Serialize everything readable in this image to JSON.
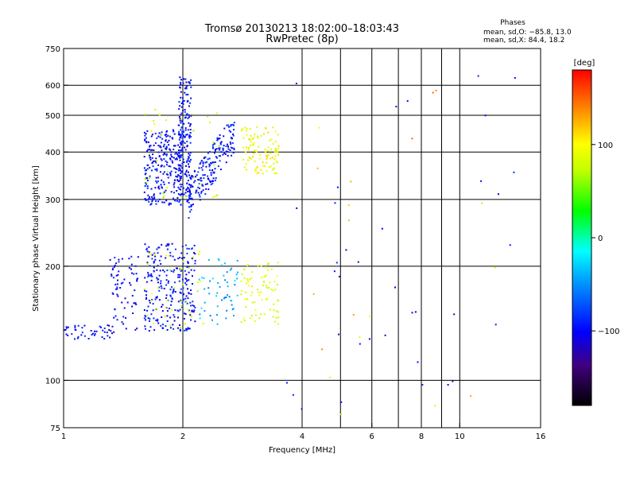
{
  "chart_data": {
    "type": "scatter",
    "title": "Tromsø 20130213 18:02:00–18:03:43",
    "subtitle": "RwPretec (8p)",
    "stats": {
      "heading": "Phases",
      "line_o": "mean, sd,O: −85.8, 13.0",
      "line_x": "mean, sd,X:  84.4, 18.2"
    },
    "xlabel": "Frequency [MHz]",
    "ylabel": "Stationary phase Virtual Height [km]",
    "x_scale": "log",
    "y_scale": "log",
    "xlim": [
      1,
      16
    ],
    "ylim": [
      75,
      750
    ],
    "x_ticks": [
      1,
      2,
      4,
      6,
      8,
      10,
      16
    ],
    "x_tick_labels": [
      "1",
      "2",
      "4",
      "6",
      "8",
      "10",
      "16"
    ],
    "x_gridlines": [
      2,
      4,
      5,
      6,
      7,
      8,
      9,
      10
    ],
    "y_ticks": [
      75,
      100,
      200,
      300,
      400,
      500,
      600,
      750
    ],
    "y_tick_labels": [
      "75",
      "100",
      "200",
      "300",
      "400",
      "500",
      "600",
      "750"
    ],
    "y_gridlines": [
      100,
      200,
      300,
      400,
      500,
      600
    ],
    "grid": true,
    "colorbar": {
      "label": "[deg]",
      "range": [
        -180,
        180
      ],
      "ticks": [
        100,
        0,
        -100
      ],
      "tick_labels": [
        "100",
        "0",
        "−100"
      ]
    },
    "clusters": [
      {
        "name_hint": "low-layer-blue",
        "x_range": [
          1.0,
          1.35
        ],
        "y_range": [
          128,
          140
        ],
        "phase": -100,
        "n": 45
      },
      {
        "name_hint": "low-layer-blue",
        "x_range": [
          1.3,
          1.55
        ],
        "y_range": [
          135,
          215
        ],
        "phase": -98,
        "n": 70
      },
      {
        "name_hint": "low-layer-blue",
        "x_range": [
          1.6,
          2.15
        ],
        "y_range": [
          135,
          230
        ],
        "phase": -95,
        "n": 260
      },
      {
        "name_hint": "low-layer-mixed",
        "x_range": [
          1.6,
          2.3
        ],
        "y_range": [
          135,
          220
        ],
        "phase": 80,
        "n": 40
      },
      {
        "name_hint": "low-layer-edge",
        "x_range": [
          2.2,
          2.75
        ],
        "y_range": [
          140,
          215
        ],
        "phase": -40,
        "n": 55
      },
      {
        "name_hint": "low-layer-x",
        "x_range": [
          2.8,
          3.5
        ],
        "y_range": [
          140,
          205
        ],
        "phase": 90,
        "n": 80
      },
      {
        "name_hint": "high-layer-blue",
        "x_range": [
          1.6,
          2.0
        ],
        "y_range": [
          290,
          460
        ],
        "phase": -100,
        "n": 260
      },
      {
        "name_hint": "high-layer-cusp",
        "x_range": [
          1.95,
          2.1
        ],
        "y_range": [
          300,
          640
        ],
        "phase": -98,
        "n": 180
      },
      {
        "name_hint": "high-layer-rise",
        "x_range": [
          2.05,
          2.7
        ],
        "y_range": [
          300,
          450
        ],
        "phase": -95,
        "n": 200
      },
      {
        "name_hint": "high-layer-mixed",
        "x_range": [
          1.6,
          2.5
        ],
        "y_range": [
          300,
          520
        ],
        "phase": 75,
        "n": 35
      },
      {
        "name_hint": "high-layer-x",
        "x_range": [
          2.8,
          3.5
        ],
        "y_range": [
          350,
          470
        ],
        "phase": 95,
        "n": 110
      },
      {
        "name_hint": "sparse-mid",
        "x_range": [
          3.5,
          14
        ],
        "y_range": [
          75,
          650
        ],
        "phase": -60,
        "n": 55
      }
    ]
  }
}
